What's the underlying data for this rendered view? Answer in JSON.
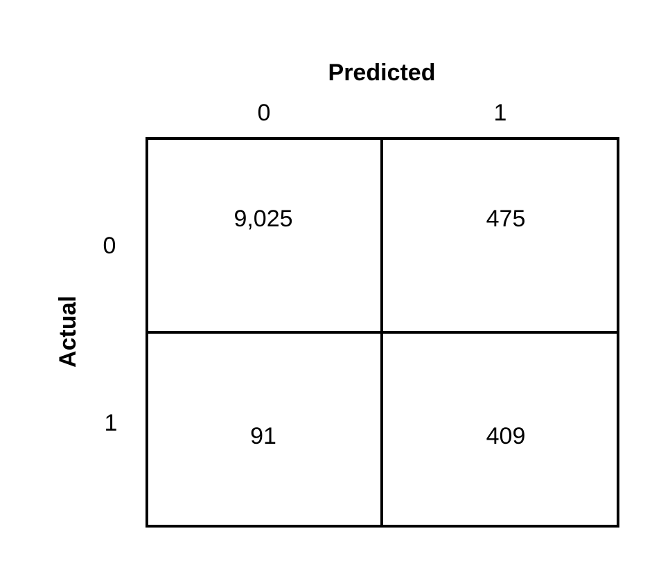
{
  "axes": {
    "column_title": "Predicted",
    "row_title": "Actual",
    "column_labels": [
      "0",
      "1"
    ],
    "row_labels": [
      "0",
      "1"
    ]
  },
  "matrix": {
    "r0c0": "9,025",
    "r0c1": "475",
    "r1c0": "91",
    "r1c1": "409"
  },
  "chart_data": {
    "type": "table",
    "columns": [
      "0",
      "1"
    ],
    "rows": [
      "0",
      "1"
    ],
    "values": [
      [
        9025,
        475
      ],
      [
        91,
        409
      ]
    ],
    "xlabel": "Predicted",
    "ylabel": "Actual"
  }
}
